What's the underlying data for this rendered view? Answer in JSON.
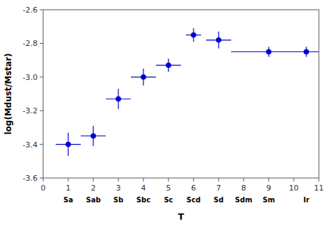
{
  "chart_data": {
    "type": "scatter",
    "x": [
      1,
      2,
      3,
      4,
      5,
      6,
      7,
      9,
      10.5
    ],
    "values": [
      -3.4,
      -3.35,
      -3.13,
      -3.0,
      -2.93,
      -2.75,
      -2.78,
      -2.85,
      -2.85
    ],
    "xerr": [
      0.5,
      0.5,
      0.5,
      0.5,
      0.5,
      0.3,
      0.5,
      1.5,
      0.5
    ],
    "yerr": [
      0.07,
      0.06,
      0.06,
      0.05,
      0.04,
      0.04,
      0.05,
      0.03,
      0.03
    ],
    "color": "#0000cc",
    "x_label": "T",
    "y_label": "log(Mdust/Mstar)",
    "xlim": [
      0,
      11
    ],
    "ylim": [
      -3.6,
      -2.6
    ],
    "xticks": [
      0,
      1,
      2,
      3,
      4,
      5,
      6,
      7,
      8,
      9,
      10,
      11
    ],
    "yticks": [
      -3.6,
      -3.4,
      -3.2,
      {
        "value": -3.0,
        "label": "-3.0"
      },
      -2.8,
      -2.6
    ],
    "annotations": [
      {
        "text": "Sa",
        "x": 1
      },
      {
        "text": "Sab",
        "x": 2
      },
      {
        "text": "Sb",
        "x": 3
      },
      {
        "text": "Sbc",
        "x": 4
      },
      {
        "text": "Sc",
        "x": 5
      },
      {
        "text": "Scd",
        "x": 6
      },
      {
        "text": "Sd",
        "x": 7
      },
      {
        "text": "Sdm",
        "x": 8
      },
      {
        "text": "Sm",
        "x": 9
      },
      {
        "text": "Ir",
        "x": 10.5
      }
    ]
  }
}
